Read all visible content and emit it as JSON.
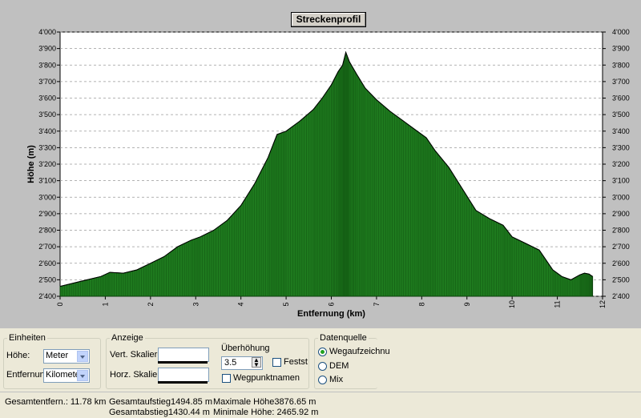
{
  "title": "Streckenprofil",
  "chart_data": {
    "type": "area",
    "title": "Streckenprofil",
    "xlabel": "Entfernung (km)",
    "ylabel": "Höhe (m)",
    "xlim": [
      0,
      12
    ],
    "ylim": [
      2400,
      4000
    ],
    "x_ticks": [
      "0",
      "1",
      "2",
      "3",
      "4",
      "5",
      "6",
      "7",
      "8",
      "9",
      "10",
      "11",
      "12"
    ],
    "y_ticks": [
      "2'400",
      "2'500",
      "2'600",
      "2'700",
      "2'800",
      "2'900",
      "3'000",
      "3'100",
      "3'200",
      "3'300",
      "3'400",
      "3'500",
      "3'600",
      "3'700",
      "3'800",
      "3'900",
      "4'000"
    ],
    "grid": true,
    "fill_color": "#1e7a1e",
    "x": [
      0,
      0.3,
      0.6,
      0.9,
      1.1,
      1.4,
      1.7,
      2.0,
      2.3,
      2.6,
      2.9,
      3.1,
      3.4,
      3.7,
      4.0,
      4.3,
      4.6,
      4.8,
      5.0,
      5.3,
      5.6,
      5.8,
      6.0,
      6.15,
      6.25,
      6.32,
      6.4,
      6.55,
      6.75,
      7.0,
      7.3,
      7.6,
      7.9,
      8.1,
      8.3,
      8.6,
      8.9,
      9.2,
      9.5,
      9.8,
      10.0,
      10.3,
      10.6,
      10.9,
      11.1,
      11.3,
      11.5,
      11.6,
      11.7,
      11.78
    ],
    "y": [
      2460,
      2480,
      2500,
      2520,
      2545,
      2540,
      2560,
      2600,
      2640,
      2700,
      2740,
      2760,
      2800,
      2860,
      2950,
      3080,
      3240,
      3380,
      3400,
      3460,
      3530,
      3600,
      3680,
      3760,
      3800,
      3877,
      3820,
      3750,
      3660,
      3590,
      3520,
      3460,
      3400,
      3360,
      3280,
      3180,
      3050,
      2920,
      2870,
      2830,
      2760,
      2720,
      2680,
      2560,
      2520,
      2500,
      2530,
      2540,
      2535,
      2520
    ]
  },
  "panels": {
    "einheiten": {
      "legend": "Einheiten",
      "hoehe_label": "Höhe:",
      "hoehe_value": "Meter",
      "entfernung_label": "Entfernung:",
      "entfernung_value": "Kilometer"
    },
    "anzeige": {
      "legend": "Anzeige",
      "vert_label": "Vert. Skalieru",
      "horz_label": "Horz. Skalieru",
      "ueberhoehung_label": "Überhöhung",
      "ueberhoehung_value": "3.5",
      "fest_label": "Festst",
      "wegpunkt_label": "Wegpunktnamen"
    },
    "datenquelle": {
      "legend": "Datenquelle",
      "options": [
        "Wegaufzeichnu",
        "DEM",
        "Mix"
      ]
    }
  },
  "status": {
    "gesamtentfernung": "Gesamtentfern.: 11.78 km",
    "gesamtaufstieg": "Gesamtaufstieg1494.85 m",
    "gesamtabstieg": "Gesamtabstieg1430.44 m",
    "max_hoehe": "Maximale Höhe3876.65 m",
    "min_hoehe": "Minimale Höhe: 2465.92 m"
  }
}
